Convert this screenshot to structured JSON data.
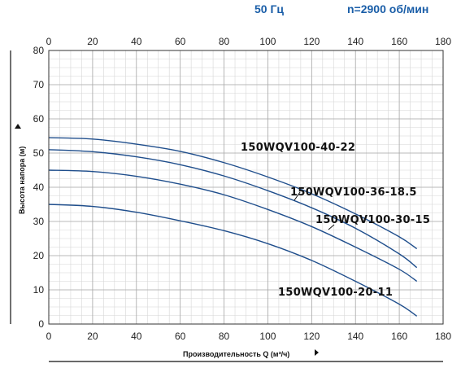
{
  "header": {
    "frequency": "50 Гц",
    "speed": "n=2900 об/мин"
  },
  "chart_data": {
    "type": "line",
    "xlabel": "Производительность Q (м³/ч)",
    "ylabel": "Высота напора (м)",
    "xlim": [
      0,
      180
    ],
    "ylim": [
      0,
      80
    ],
    "x_ticks": [
      0,
      20,
      40,
      60,
      80,
      100,
      120,
      140,
      160,
      180
    ],
    "y_ticks": [
      0,
      10,
      20,
      30,
      40,
      50,
      60,
      70,
      80
    ],
    "grid": true,
    "series": [
      {
        "name": "150WQV100-40-22",
        "x": [
          0,
          20,
          40,
          60,
          80,
          100,
          120,
          140,
          160,
          168
        ],
        "y": [
          54.5,
          54.1,
          52.6,
          50.5,
          47.2,
          43.0,
          38.1,
          32.2,
          25.5,
          22.0
        ]
      },
      {
        "name": "150WQV100-36-18.5",
        "x": [
          0,
          20,
          40,
          60,
          80,
          100,
          120,
          140,
          160,
          168
        ],
        "y": [
          51.0,
          50.4,
          48.9,
          46.6,
          43.3,
          39.0,
          34.0,
          28.0,
          20.5,
          16.5
        ]
      },
      {
        "name": "150WQV100-30-15",
        "x": [
          0,
          20,
          40,
          60,
          80,
          100,
          120,
          140,
          160,
          168
        ],
        "y": [
          45.0,
          44.6,
          43.2,
          40.9,
          37.8,
          33.5,
          28.5,
          22.5,
          16.0,
          12.5
        ]
      },
      {
        "name": "150WQV100-20-11",
        "x": [
          0,
          20,
          40,
          60,
          80,
          100,
          120,
          140,
          160,
          168
        ],
        "y": [
          35.0,
          34.4,
          32.7,
          30.2,
          27.3,
          23.5,
          18.6,
          12.5,
          5.8,
          2.3
        ]
      }
    ]
  }
}
